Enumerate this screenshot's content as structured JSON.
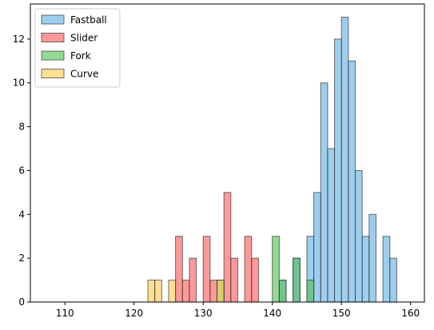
{
  "chart_data": {
    "type": "bar",
    "subtype": "histogram-overlay",
    "title": "",
    "xlabel": "",
    "ylabel": "",
    "xlim": [
      105,
      162
    ],
    "ylim": [
      0,
      13.6
    ],
    "xticks": [
      110,
      120,
      130,
      140,
      150,
      160
    ],
    "yticks": [
      0,
      2,
      4,
      6,
      8,
      10,
      12
    ],
    "bin_width": 1,
    "grid": false,
    "legend_position": "top-left",
    "series": [
      {
        "name": "Fastball",
        "color": "#5dade2",
        "bins": [
          {
            "x0": 141,
            "count": 1
          },
          {
            "x0": 143,
            "count": 2
          },
          {
            "x0": 145,
            "count": 3
          },
          {
            "x0": 146,
            "count": 5
          },
          {
            "x0": 147,
            "count": 10
          },
          {
            "x0": 148,
            "count": 7
          },
          {
            "x0": 149,
            "count": 12
          },
          {
            "x0": 150,
            "count": 13
          },
          {
            "x0": 151,
            "count": 11
          },
          {
            "x0": 152,
            "count": 6
          },
          {
            "x0": 153,
            "count": 3
          },
          {
            "x0": 154,
            "count": 4
          },
          {
            "x0": 156,
            "count": 3
          },
          {
            "x0": 157,
            "count": 2
          }
        ]
      },
      {
        "name": "Slider",
        "color": "#ff5555",
        "bins": [
          {
            "x0": 126,
            "count": 3
          },
          {
            "x0": 127,
            "count": 1
          },
          {
            "x0": 128,
            "count": 2
          },
          {
            "x0": 130,
            "count": 3
          },
          {
            "x0": 131,
            "count": 1
          },
          {
            "x0": 133,
            "count": 5
          },
          {
            "x0": 134,
            "count": 2
          },
          {
            "x0": 136,
            "count": 3
          },
          {
            "x0": 137,
            "count": 2
          }
        ]
      },
      {
        "name": "Fork",
        "color": "#4cc24c",
        "bins": [
          {
            "x0": 132,
            "count": 1
          },
          {
            "x0": 140,
            "count": 3
          },
          {
            "x0": 141,
            "count": 1
          },
          {
            "x0": 143,
            "count": 2
          },
          {
            "x0": 145,
            "count": 1
          }
        ]
      },
      {
        "name": "Curve",
        "color": "#ffc94a",
        "bins": [
          {
            "x0": 122,
            "count": 1
          },
          {
            "x0": 123,
            "count": 1
          },
          {
            "x0": 125,
            "count": 1
          },
          {
            "x0": 132,
            "count": 1
          }
        ]
      }
    ],
    "baseline": {
      "x0": 110,
      "x1": 160
    }
  }
}
